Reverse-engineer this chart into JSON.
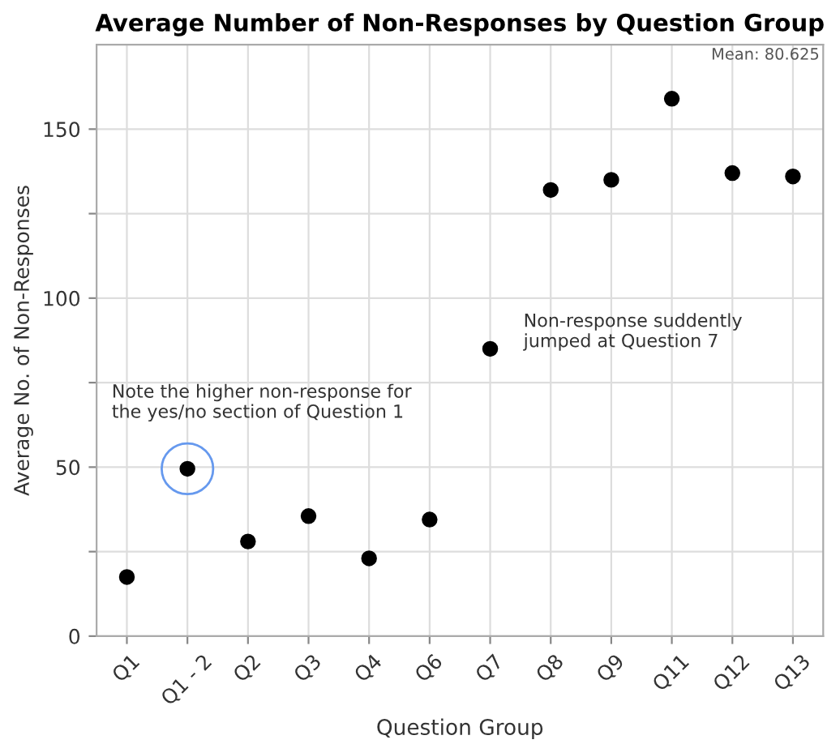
{
  "chart_data": {
    "type": "scatter",
    "title": "Average Number of Non-Responses by Question Group",
    "xlabel": "Question Group",
    "ylabel": "Average No. of Non-Responses",
    "categories": [
      "Q1",
      "Q1 - 2",
      "Q2",
      "Q3",
      "Q4",
      "Q6",
      "Q7",
      "Q8",
      "Q9",
      "Q11",
      "Q12",
      "Q13"
    ],
    "series": [
      {
        "color": "#000000",
        "values": [
          17.5,
          49.5,
          28,
          35.5,
          23,
          34.5,
          85,
          132,
          135,
          159,
          137,
          136
        ]
      }
    ],
    "ylim": [
      0,
      175
    ],
    "yticks": [
      0,
      {
        "value": 25,
        "label": null
      },
      50,
      {
        "value": 75,
        "label": null
      },
      100,
      {
        "value": 125,
        "label": null
      },
      150
    ],
    "grid": true,
    "marker": "circle",
    "annotations": [
      "Mean: 80.625",
      {
        "text": "Note the higher non-response for\nthe yes/no section of Question 1",
        "x": "Q1 - 2",
        "y": 49.5
      },
      {
        "text": "Non-response suddently\njumped at Question 7",
        "x": "Q7",
        "y": 85
      }
    ]
  }
}
